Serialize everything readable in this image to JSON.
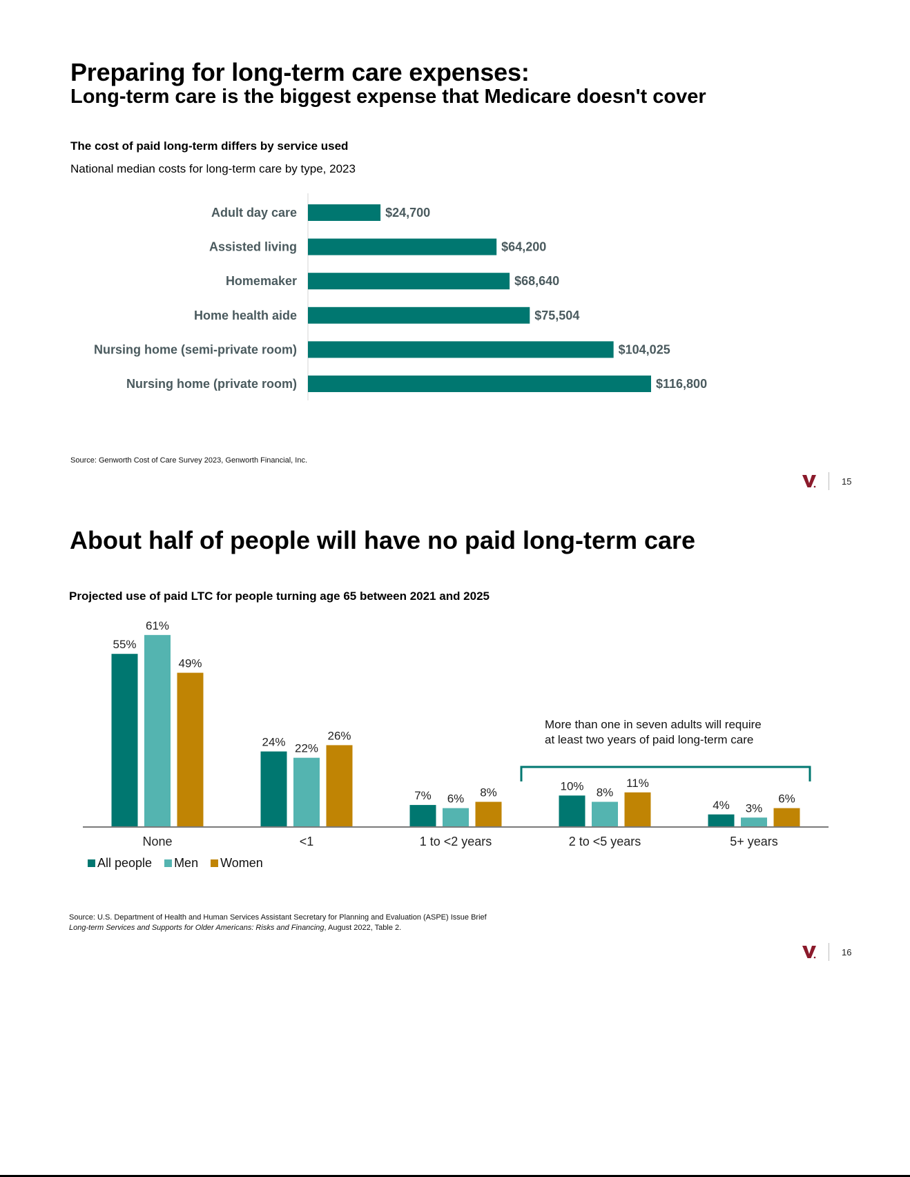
{
  "page1": {
    "title": "Preparing for long-term care expenses:",
    "subtitle": "Long-term care is the biggest expense that Medicare doesn't cover",
    "chart_heading": "The cost of paid long-term differs by service used",
    "chart_subheading": "National median costs for long-term care by type, 2023",
    "source": "Source: Genworth Cost of Care Survey 2023, Genworth Financial, Inc.",
    "logo": "V",
    "page_number": "15"
  },
  "page2": {
    "title": "About half of people will have no paid long-term care",
    "chart_heading": "Projected use of paid LTC for people turning age 65 between 2021 and 2025",
    "annotation_line1": "More than one in seven adults will require",
    "annotation_line2": "at least two years of paid long-term care",
    "source_line1": "Source: U.S. Department of Health and Human Services Assistant Secretary for Planning and Evaluation (ASPE) Issue Brief",
    "source_line2_italic": "Long-term Services and Supports for Older Americans: Risks and Financing",
    "source_line2_rest": ", August 2022, Table 2.",
    "logo": "V",
    "page_number": "16"
  },
  "colors": {
    "teal_dark": "#007770",
    "teal_light": "#54b4b0",
    "gold": "#c08404",
    "label_gray": "#4a5a5e",
    "logo_red": "#8b1a2b"
  },
  "chart_data": [
    {
      "type": "bar",
      "orientation": "horizontal",
      "title": "The cost of paid long-term differs by service used",
      "subtitle": "National median costs for long-term care by type, 2023",
      "categories": [
        "Adult day care",
        "Assisted living",
        "Homemaker",
        "Home health aide",
        "Nursing home (semi-private room)",
        "Nursing home (private room)"
      ],
      "values": [
        24700,
        64200,
        68640,
        75504,
        104025,
        116800
      ],
      "value_labels": [
        "$24,700",
        "$64,200",
        "$68,640",
        "$75,504",
        "$104,025",
        "$116,800"
      ],
      "xlabel": "",
      "ylabel": "",
      "xlim": [
        0,
        116800
      ],
      "grid": false,
      "color": "#007770"
    },
    {
      "type": "bar",
      "orientation": "vertical",
      "title": "Projected use of paid LTC for people turning age 65 between 2021 and 2025",
      "categories": [
        "None",
        "<1",
        "1 to <2 years",
        "2 to <5 years",
        "5+ years"
      ],
      "series": [
        {
          "name": "All people",
          "color": "#007770",
          "values": [
            55,
            24,
            7,
            10,
            4
          ],
          "labels": [
            "55%",
            "24%",
            "7%",
            "10%",
            "4%"
          ]
        },
        {
          "name": "Men",
          "color": "#54b4b0",
          "values": [
            61,
            22,
            6,
            8,
            3
          ],
          "labels": [
            "61%",
            "22%",
            "6%",
            "8%",
            "3%"
          ]
        },
        {
          "name": "Women",
          "color": "#c08404",
          "values": [
            49,
            26,
            8,
            11,
            6
          ],
          "labels": [
            "49%",
            "26%",
            "8%",
            "11%",
            "6%"
          ]
        }
      ],
      "xlabel": "",
      "ylabel": "",
      "ylim": [
        0,
        61
      ],
      "grid": false,
      "legend": "bottom-left",
      "annotation": {
        "text": "More than one in seven adults will require at least two years of paid long-term care",
        "spans_categories": [
          "2 to <5 years",
          "5+ years"
        ]
      }
    }
  ]
}
